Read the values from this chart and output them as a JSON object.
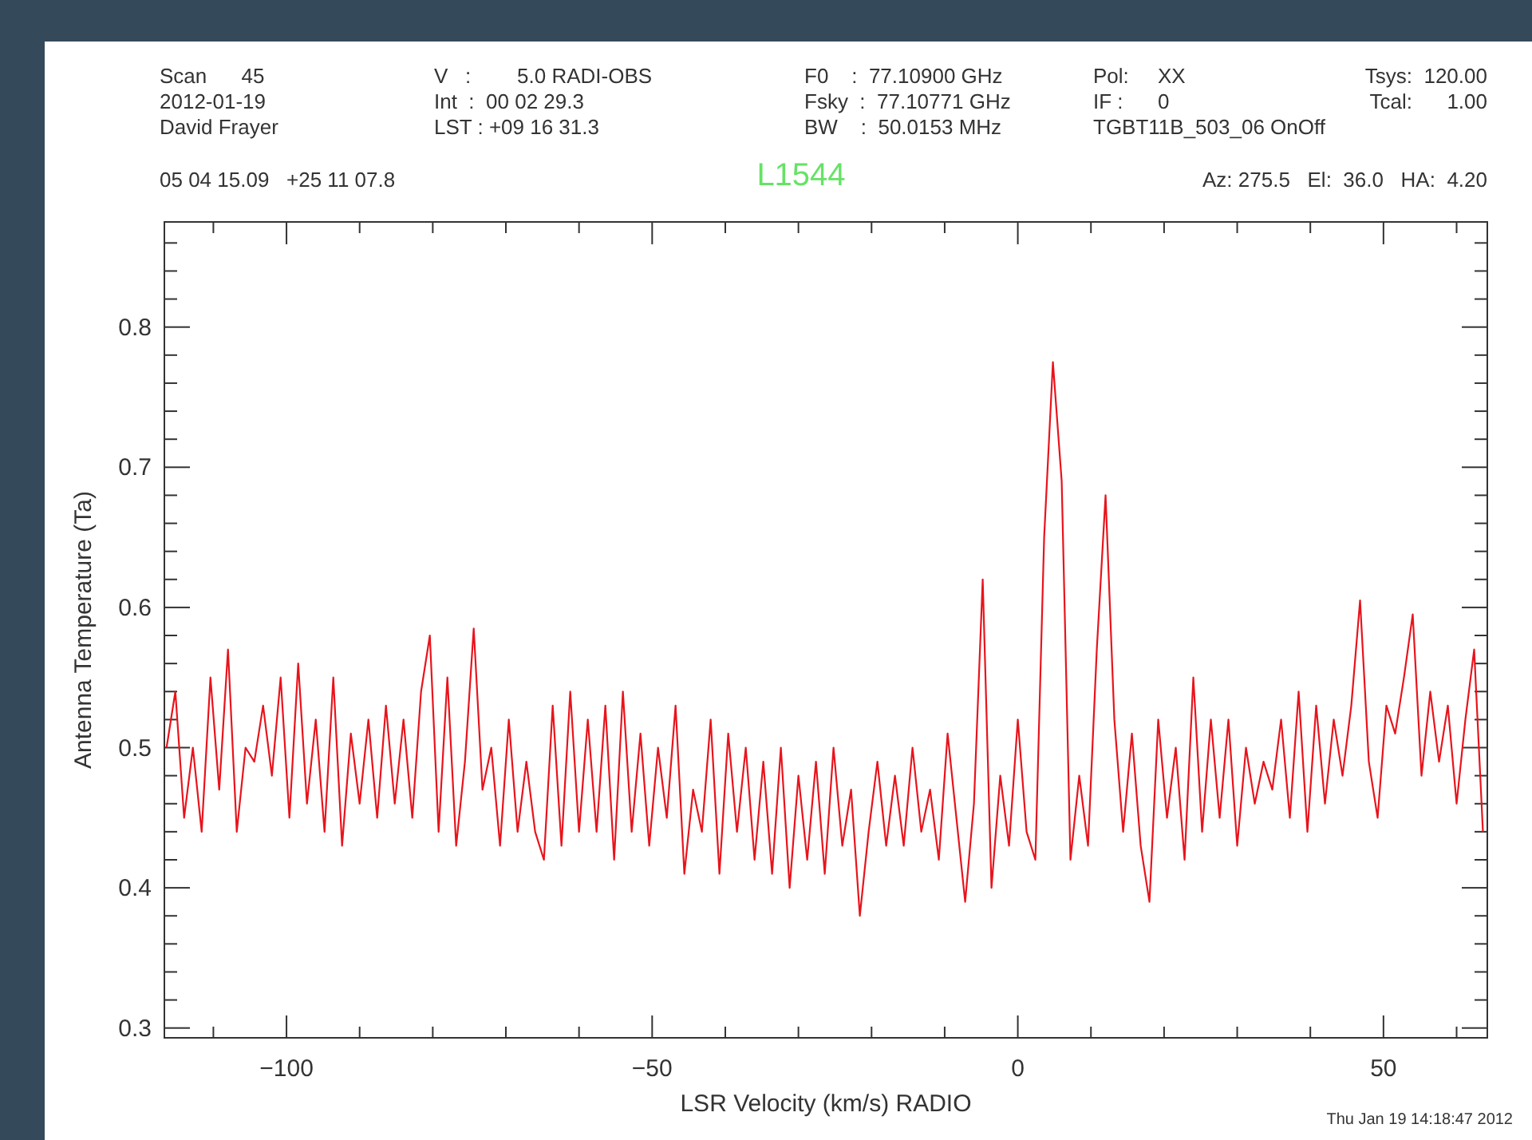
{
  "chart_data": {
    "type": "line",
    "title": "L1544",
    "xlabel": "LSR Velocity (km/s) RADIO",
    "ylabel": "Antenna Temperature (Ta)",
    "annotations": [
      "Scan      45",
      "2012-01-19",
      "David Frayer",
      "V   :        5.0 RADI-OBS",
      "Int  :  00 02 29.3",
      "LST : +09 16 31.3",
      "F0    :  77.10900 GHz",
      "Fsky  :  77.10771 GHz",
      "BW    :  50.0153 MHz",
      "Pol:     XX",
      "IF :      0",
      "TGBT11B_503_06 OnOff",
      "Tsys:  120.00",
      "Tcal:      1.00",
      "05 04 15.09   +25 11 07.8",
      "Az: 275.5   El:  36.0   HA:  4.20",
      "Thu Jan 19 14:18:47 2012"
    ],
    "x": [
      -116.4,
      -115.2,
      -114.0,
      -112.8,
      -111.6,
      -110.4,
      -109.2,
      -108.0,
      -106.8,
      -105.6,
      -104.4,
      -103.2,
      -102.0,
      -100.8,
      -99.6,
      -98.4,
      -97.2,
      -96.0,
      -94.8,
      -93.6,
      -92.4,
      -91.2,
      -90.0,
      -88.8,
      -87.6,
      -86.4,
      -85.2,
      -84.0,
      -82.8,
      -81.6,
      -80.4,
      -79.2,
      -78.0,
      -76.8,
      -75.6,
      -74.4,
      -73.2,
      -72.0,
      -70.8,
      -69.6,
      -68.4,
      -67.2,
      -66.0,
      -64.8,
      -63.6,
      -62.4,
      -61.2,
      -60.0,
      -58.8,
      -57.6,
      -56.4,
      -55.2,
      -54.0,
      -52.8,
      -51.6,
      -50.4,
      -49.2,
      -48.0,
      -46.8,
      -45.6,
      -44.4,
      -43.2,
      -42.0,
      -40.8,
      -39.6,
      -38.4,
      -37.2,
      -36.0,
      -34.8,
      -33.6,
      -32.4,
      -31.2,
      -30.0,
      -28.8,
      -27.6,
      -26.4,
      -25.2,
      -24.0,
      -22.8,
      -21.6,
      -20.4,
      -19.2,
      -18.0,
      -16.8,
      -15.6,
      -14.4,
      -13.2,
      -12.0,
      -10.8,
      -9.6,
      -8.4,
      -7.2,
      -6.0,
      -4.8,
      -3.6,
      -2.4,
      -1.2,
      0.0,
      1.2,
      2.4,
      3.6,
      4.8,
      6.0,
      7.2,
      8.4,
      9.6,
      10.8,
      12.0,
      13.2,
      14.4,
      15.6,
      16.8,
      18.0,
      19.2,
      20.4,
      21.6,
      22.8,
      24.0,
      25.2,
      26.4,
      27.6,
      28.8,
      30.0,
      31.2,
      32.4,
      33.6,
      34.8,
      36.0,
      37.2,
      38.4,
      39.6,
      40.8,
      42.0,
      43.2,
      44.4,
      45.6,
      46.8,
      48.0,
      49.2,
      50.4,
      51.6,
      52.8,
      54.0,
      55.2,
      56.4,
      57.6,
      58.8,
      60.0,
      61.2,
      62.4,
      63.6
    ],
    "series": [
      {
        "color": "#e8141c",
        "values": [
          0.5,
          0.54,
          0.45,
          0.5,
          0.44,
          0.55,
          0.47,
          0.57,
          0.44,
          0.5,
          0.49,
          0.53,
          0.48,
          0.55,
          0.45,
          0.56,
          0.46,
          0.52,
          0.44,
          0.55,
          0.43,
          0.51,
          0.46,
          0.52,
          0.45,
          0.53,
          0.46,
          0.52,
          0.45,
          0.54,
          0.58,
          0.44,
          0.55,
          0.43,
          0.49,
          0.585,
          0.47,
          0.5,
          0.43,
          0.52,
          0.44,
          0.49,
          0.44,
          0.42,
          0.53,
          0.43,
          0.54,
          0.44,
          0.52,
          0.44,
          0.53,
          0.42,
          0.54,
          0.44,
          0.51,
          0.43,
          0.5,
          0.45,
          0.53,
          0.41,
          0.47,
          0.44,
          0.52,
          0.41,
          0.51,
          0.44,
          0.5,
          0.42,
          0.49,
          0.41,
          0.5,
          0.4,
          0.48,
          0.42,
          0.49,
          0.41,
          0.5,
          0.43,
          0.47,
          0.38,
          0.44,
          0.49,
          0.43,
          0.48,
          0.43,
          0.5,
          0.44,
          0.47,
          0.42,
          0.51,
          0.45,
          0.39,
          0.46,
          0.62,
          0.4,
          0.48,
          0.43,
          0.52,
          0.44,
          0.42,
          0.65,
          0.775,
          0.69,
          0.42,
          0.48,
          0.43,
          0.57,
          0.68,
          0.52,
          0.44,
          0.51,
          0.43,
          0.39,
          0.52,
          0.45,
          0.5,
          0.42,
          0.55,
          0.44,
          0.52,
          0.45,
          0.52,
          0.43,
          0.5,
          0.46,
          0.49,
          0.47,
          0.52,
          0.45,
          0.54,
          0.44,
          0.53,
          0.46,
          0.52,
          0.48,
          0.53,
          0.605,
          0.49,
          0.45,
          0.53,
          0.51,
          0.55,
          0.595,
          0.48,
          0.54,
          0.49,
          0.53,
          0.46,
          0.52,
          0.57,
          0.44
        ]
      }
    ],
    "xlim": [
      -116.7,
      64.2
    ],
    "ylim": [
      0.293,
      0.875
    ],
    "xticks": [
      {
        "value": -110,
        "label": null
      },
      -100,
      {
        "value": -90,
        "label": null
      },
      {
        "value": -80,
        "label": null
      },
      {
        "value": -70,
        "label": null
      },
      {
        "value": -60,
        "label": null
      },
      -50,
      {
        "value": -40,
        "label": null
      },
      {
        "value": -30,
        "label": null
      },
      {
        "value": -20,
        "label": null
      },
      {
        "value": -10,
        "label": null
      },
      0,
      {
        "value": 10,
        "label": null
      },
      {
        "value": 20,
        "label": null
      },
      {
        "value": 30,
        "label": null
      },
      {
        "value": 40,
        "label": null
      },
      50,
      {
        "value": 60,
        "label": null
      }
    ],
    "yticks": [
      0.3,
      {
        "value": 0.32,
        "label": null
      },
      {
        "value": 0.34,
        "label": null
      },
      {
        "value": 0.36,
        "label": null
      },
      {
        "value": 0.38,
        "label": null
      },
      0.4,
      {
        "value": 0.42,
        "label": null
      },
      {
        "value": 0.44,
        "label": null
      },
      {
        "value": 0.46,
        "label": null
      },
      {
        "value": 0.48,
        "label": null
      },
      0.5,
      {
        "value": 0.52,
        "label": null
      },
      {
        "value": 0.54,
        "label": null
      },
      {
        "value": 0.56,
        "label": null
      },
      {
        "value": 0.58,
        "label": null
      },
      0.6,
      {
        "value": 0.62,
        "label": null
      },
      {
        "value": 0.64,
        "label": null
      },
      {
        "value": 0.66,
        "label": null
      },
      {
        "value": 0.68,
        "label": null
      },
      0.7,
      {
        "value": 0.72,
        "label": null
      },
      {
        "value": 0.74,
        "label": null
      },
      {
        "value": 0.76,
        "label": null
      },
      {
        "value": 0.78,
        "label": null
      },
      0.8,
      {
        "value": 0.82,
        "label": null
      },
      {
        "value": 0.84,
        "label": null
      },
      {
        "value": 0.86,
        "label": null
      }
    ],
    "marker": "none",
    "line_style": "solid"
  }
}
